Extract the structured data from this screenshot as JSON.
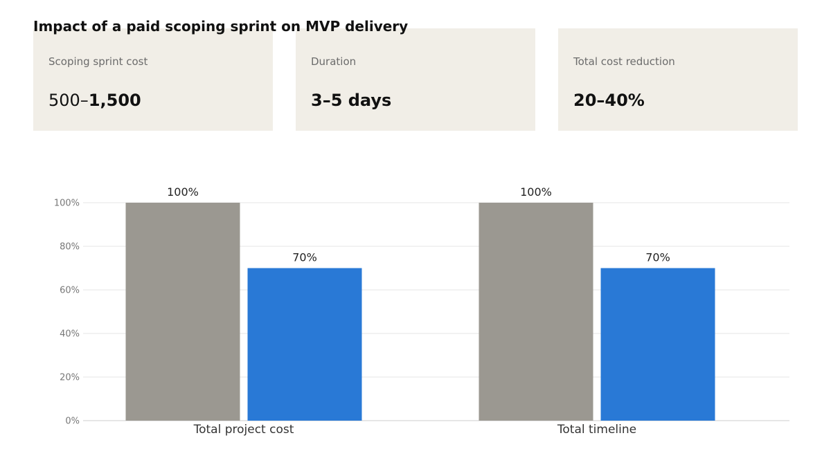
{
  "title": "Impact of a paid scoping sprint on MVP delivery",
  "cards": [
    {
      "label": "Scoping sprint cost",
      "value_light": "500–",
      "value_bold": "1,500"
    },
    {
      "label": "Duration",
      "value_light": "",
      "value_bold": "3–5 days"
    },
    {
      "label": "Total cost reduction",
      "value_light": "",
      "value_bold": "20–40%"
    }
  ],
  "colors": {
    "baseline_bar": "#9b9891",
    "sprint_bar": "#2979d6",
    "card_bg": "#f1eee7",
    "grid": "#e6e6e6",
    "axis": "#cccccc"
  },
  "chart_data": {
    "type": "bar",
    "categories": [
      "Total project cost",
      "Total timeline"
    ],
    "series": [
      {
        "values": [
          100,
          100
        ],
        "labels": [
          "100%",
          "100%"
        ]
      },
      {
        "values": [
          70,
          70
        ],
        "labels": [
          "70%",
          "70%"
        ]
      }
    ],
    "ylim": [
      0,
      100
    ],
    "yticks": [
      "0%",
      "20%",
      "40%",
      "60%",
      "80%",
      "100%"
    ],
    "ytick_values": [
      0,
      20,
      40,
      60,
      80,
      100
    ],
    "grid": true
  }
}
